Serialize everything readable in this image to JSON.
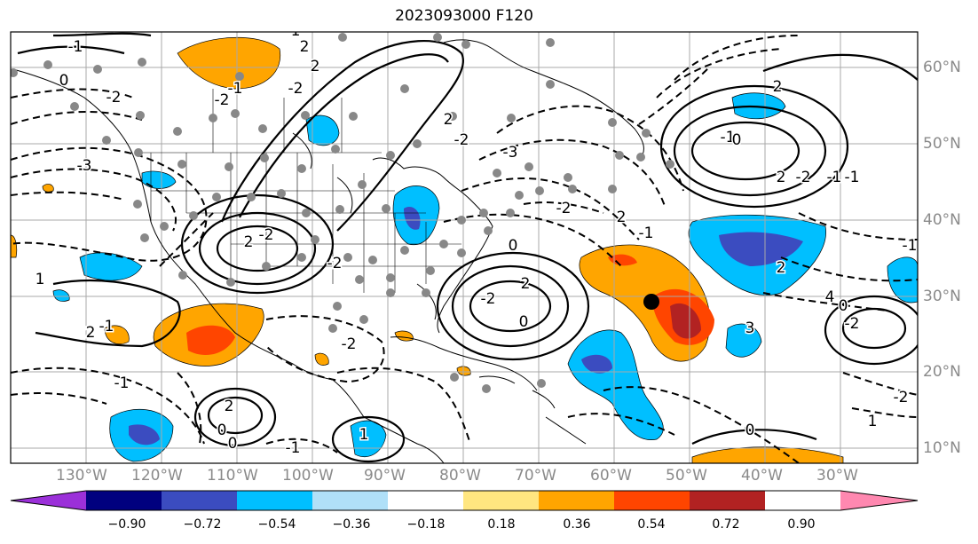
{
  "title": "2023093000 F120",
  "lat_labels": [
    "60°N",
    "50°N",
    "40°N",
    "30°N",
    "20°N",
    "10°N"
  ],
  "lon_labels": [
    "130°W",
    "120°W",
    "110°W",
    "100°W",
    "90°W",
    "80°W",
    "70°W",
    "60°W",
    "50°W",
    "40°W",
    "30°W"
  ],
  "colorbar": {
    "ticks": [
      "−0.90",
      "−0.72",
      "−0.54",
      "−0.36",
      "−0.18",
      "0.18",
      "0.36",
      "0.54",
      "0.72",
      "0.90"
    ],
    "colors": [
      "#9b30d9",
      "#00007f",
      "#3b4cc0",
      "#00bfff",
      "#b0e0f8",
      "#ffffff",
      "#ffe680",
      "#ffa500",
      "#ff4500",
      "#b22222",
      "#ff88b0"
    ]
  },
  "contour_labels": [
    "-1",
    "0",
    "-2",
    "-3",
    "-2",
    "2",
    "2",
    "-2",
    "0",
    "-1",
    "-3",
    "2",
    "-2",
    "-1",
    "2",
    "0",
    "-2",
    "-2",
    "-1",
    "2",
    "-2",
    "0",
    "2",
    "-1",
    "0",
    "2",
    "3",
    "4",
    "-2",
    "-2",
    "2",
    "0",
    "-1",
    "-2",
    "2",
    "-1",
    "0",
    "1",
    "-1",
    "2",
    "1",
    "0",
    "-1",
    "-1",
    "-2",
    "2",
    "-1",
    "0",
    "1",
    "-2",
    "2"
  ]
}
